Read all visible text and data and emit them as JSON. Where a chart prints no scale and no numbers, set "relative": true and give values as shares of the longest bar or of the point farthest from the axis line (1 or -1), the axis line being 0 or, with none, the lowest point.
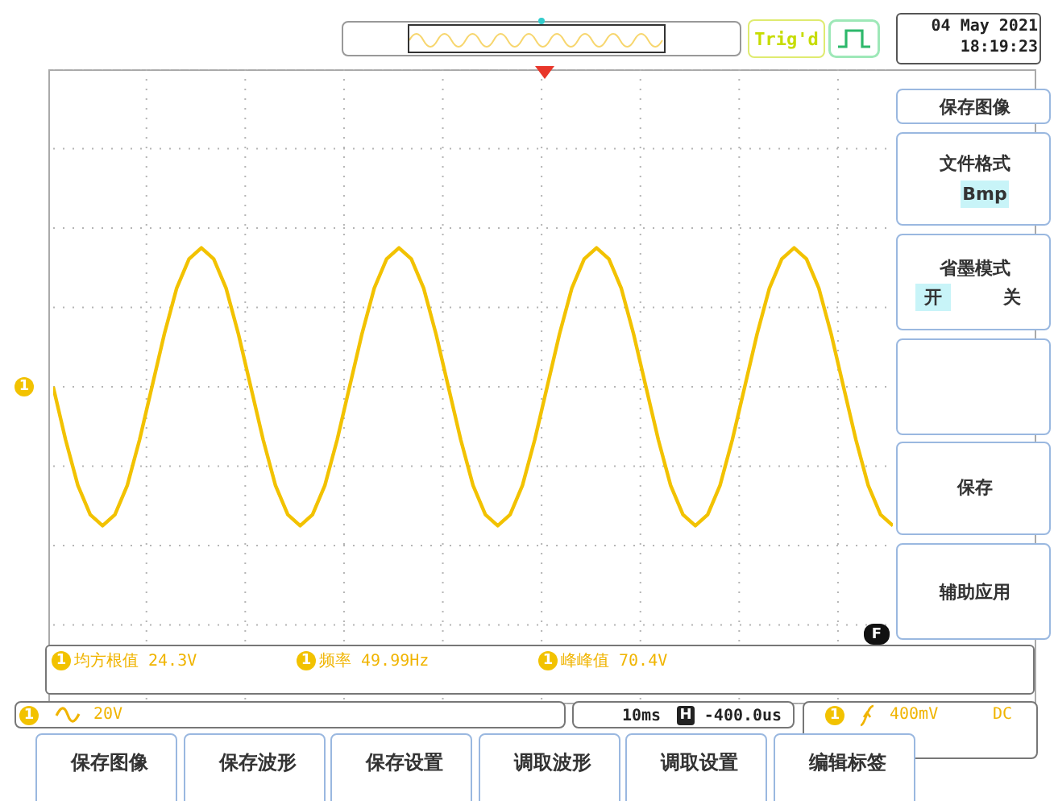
{
  "chart_data": {
    "type": "line",
    "relative": true,
    "grid": true,
    "categories": [
      null,
      null,
      null,
      null,
      null,
      null,
      null,
      null,
      null,
      null,
      null,
      null,
      null,
      null,
      null,
      null,
      null,
      null,
      null,
      null,
      null,
      null,
      null,
      null,
      null,
      null,
      null,
      null,
      null,
      null,
      null,
      null,
      null,
      null,
      null,
      null,
      null,
      null,
      null,
      null,
      null,
      null,
      null,
      null,
      null,
      null,
      null,
      null,
      null,
      null,
      null,
      null,
      null,
      null,
      null,
      null,
      null,
      null,
      null,
      null,
      null,
      null,
      null,
      null,
      null,
      null,
      null,
      null,
      null
    ],
    "series": [
      {
        "color": "#f2c200",
        "values": [
          0,
          -0.38,
          -0.71,
          -0.92,
          -1,
          -0.92,
          -0.71,
          -0.38,
          0,
          0.38,
          0.71,
          0.92,
          1,
          0.92,
          0.71,
          0.38,
          0,
          -0.38,
          -0.71,
          -0.92,
          -1,
          -0.92,
          -0.71,
          -0.38,
          0,
          0.38,
          0.71,
          0.92,
          1,
          0.92,
          0.71,
          0.38,
          0,
          -0.38,
          -0.71,
          -0.92,
          -1,
          -0.92,
          -0.71,
          -0.38,
          0,
          0.38,
          0.71,
          0.92,
          1,
          0.92,
          0.71,
          0.38,
          0,
          -0.38,
          -0.71,
          -0.92,
          -1,
          -0.92,
          -0.71,
          -0.38,
          0,
          0.38,
          0.71,
          0.92,
          1,
          0.92,
          0.71,
          0.38,
          0,
          -0.38,
          -0.71,
          -0.92,
          -1
        ]
      }
    ],
    "annotations": [
      "Trig'd",
      "04 May 2021",
      "18:19:23",
      "保存图像",
      "文件格式",
      "Bmp",
      "省墨模式",
      "开",
      "关",
      "保存",
      "辅助应用",
      "1",
      "1",
      "均方根值 24.3V",
      "1",
      "频率 49.99Hz",
      "1",
      "峰峰值 70.4V",
      "1",
      "20V",
      "10ms",
      "H",
      "-400.0us",
      "1",
      "400mV",
      "DC",
      "F",
      "保存图像",
      "保存波形",
      "保存设置",
      "调取波形",
      "调取设置",
      "编辑标签"
    ]
  }
}
